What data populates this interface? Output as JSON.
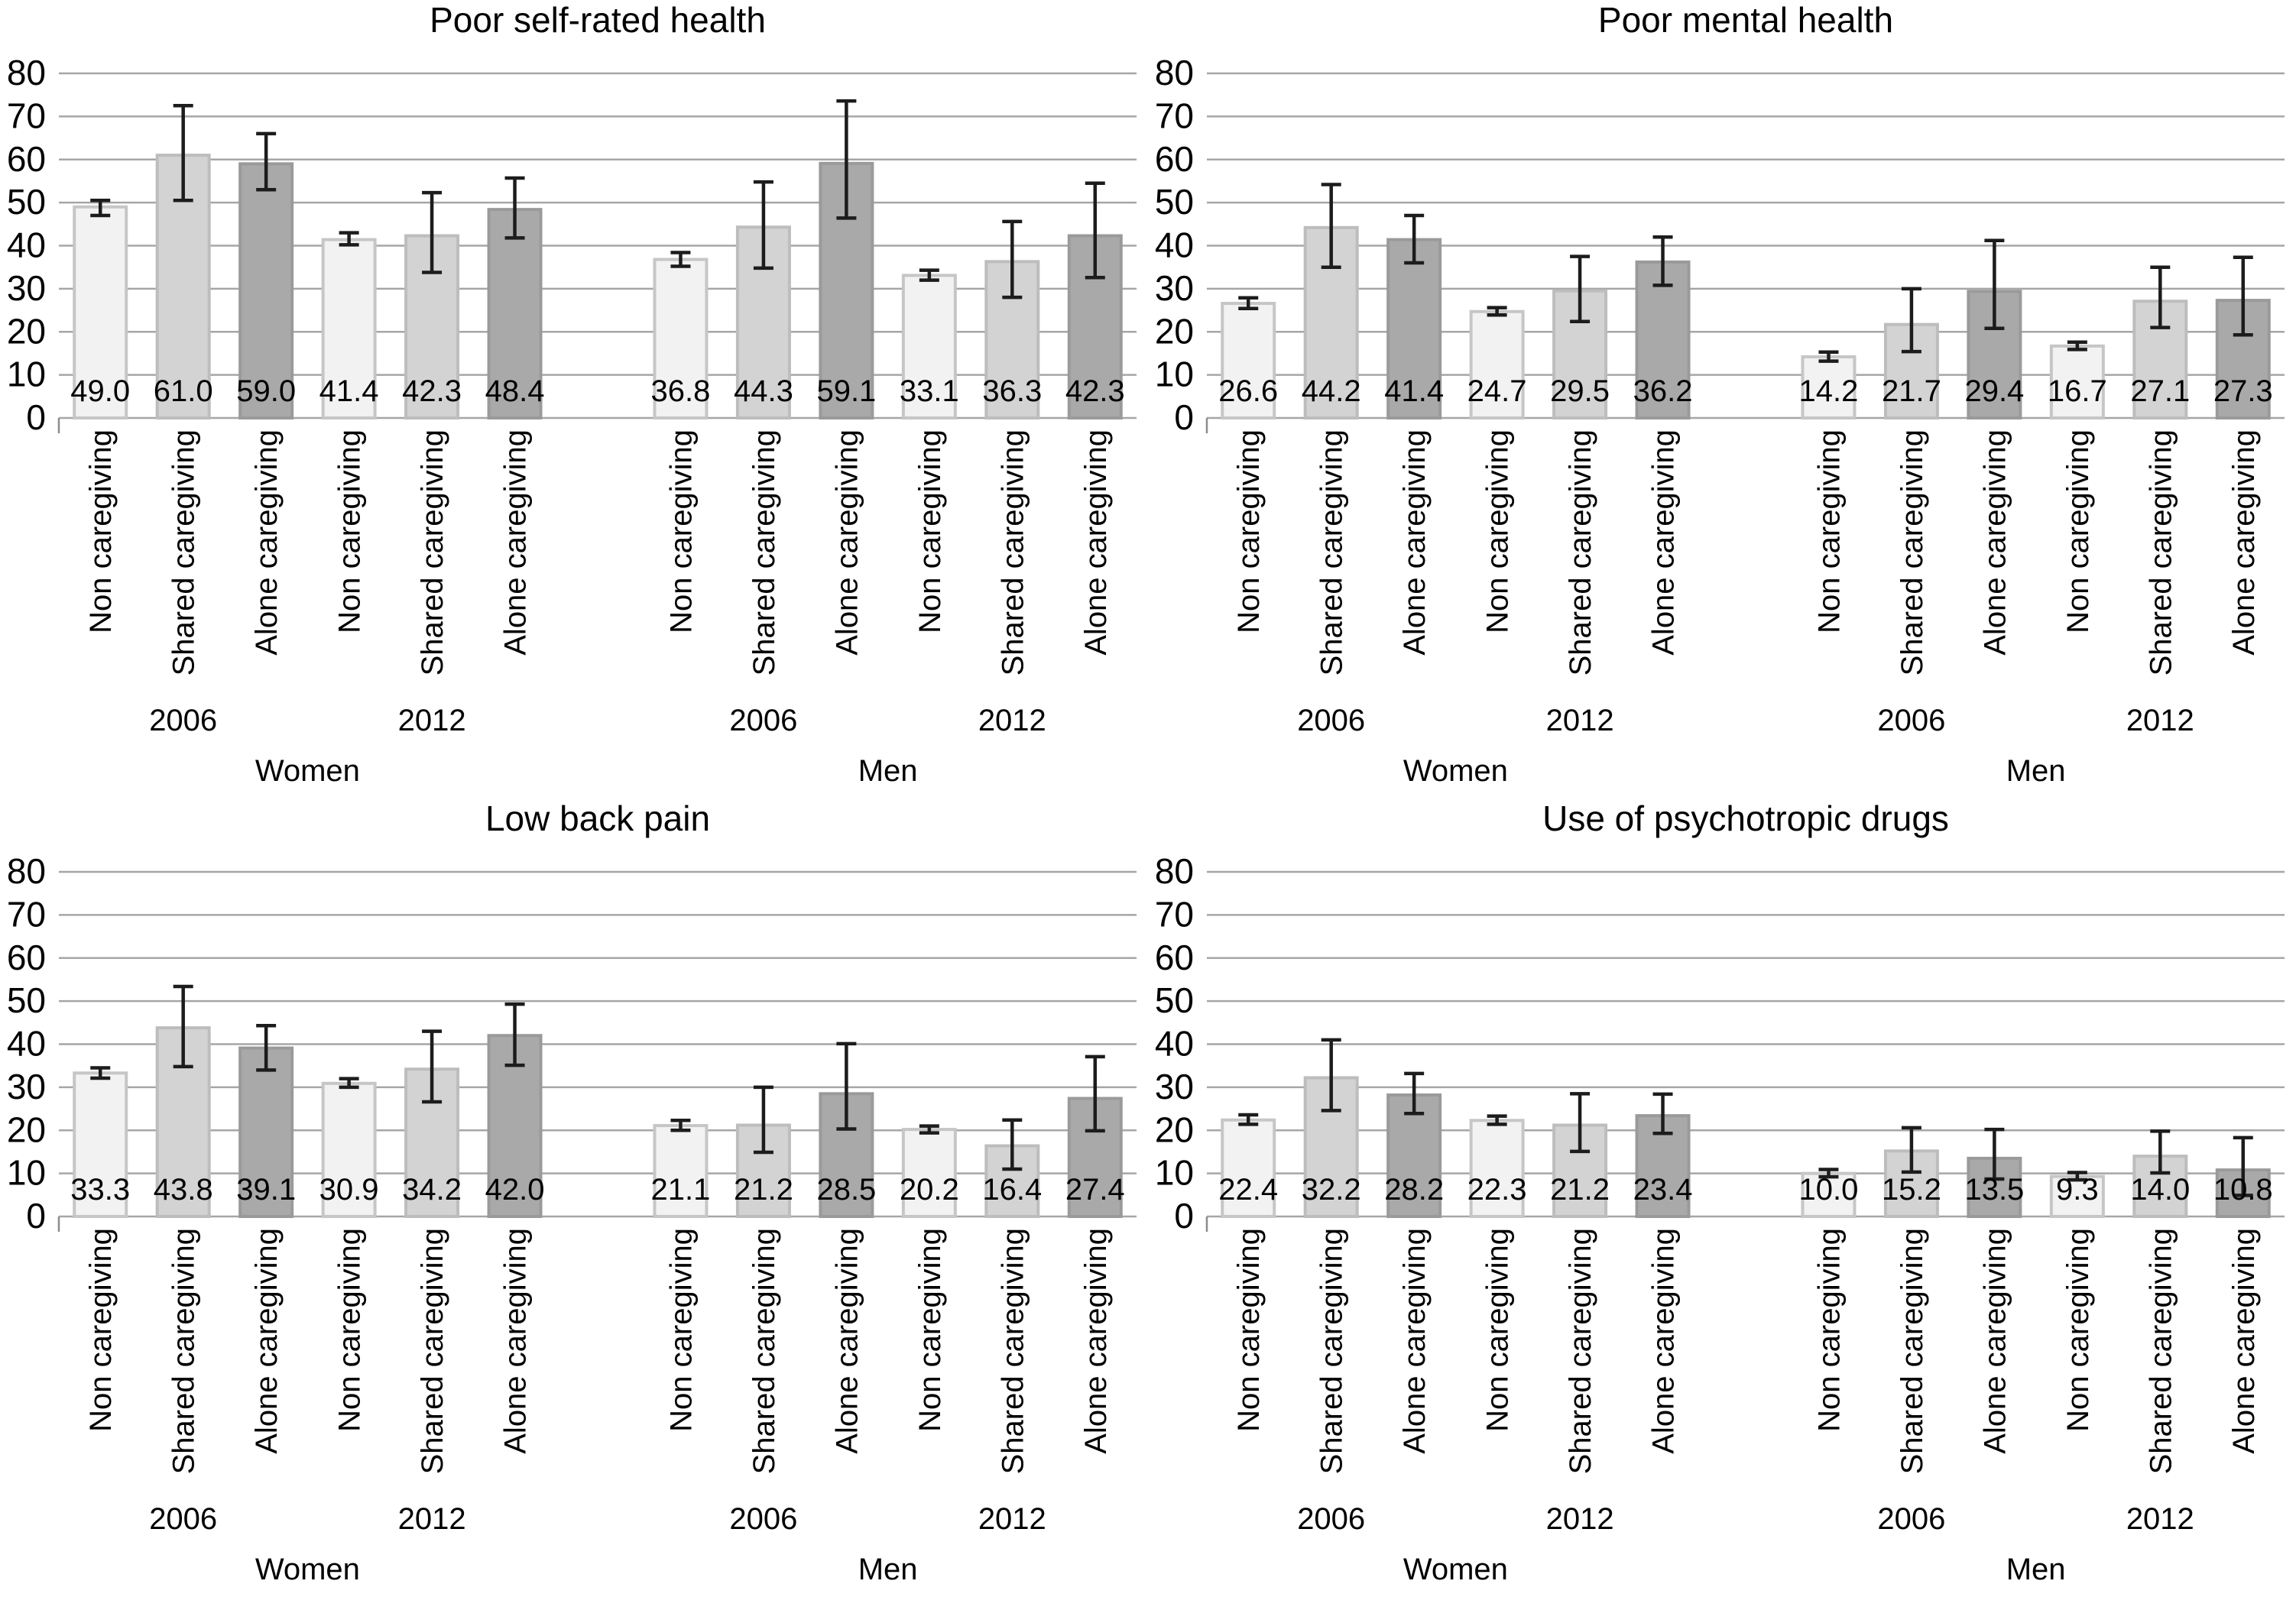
{
  "figure": {
    "description": "Four-panel grouped bar chart figure comparing health outcomes by caregiving status, sex and year",
    "panel_titles": [
      "Poor self-rated health",
      "Poor mental health",
      "Low back pain",
      "Use of psychotropic drugs"
    ]
  },
  "style": {
    "bar_fills": [
      "#f2f2f2",
      "#d3d3d3",
      "#a9a9a9"
    ],
    "bar_strokes": [
      "#c6c6c6",
      "#bdbdbd",
      "#9a9a9a"
    ],
    "gridline_color": "#a6a6a6",
    "error_bar_color": "#1c1c1c",
    "text_color": "#000000",
    "background": "#ffffff"
  },
  "chart_data": [
    {
      "type": "bar",
      "title": "Poor self-rated health",
      "ylim": [
        0,
        80
      ],
      "ytick_step": 10,
      "grid": true,
      "legend_position": "none",
      "bar_categories": [
        "Non caregiving",
        "Shared caregiving",
        "Alone caregiving"
      ],
      "groups": [
        {
          "gender": "Women",
          "year": "2006",
          "values": [
            49.0,
            61.0,
            59.0
          ],
          "ci_low": [
            47.0,
            50.5,
            53.0
          ],
          "ci_high": [
            50.5,
            72.5,
            66.0
          ]
        },
        {
          "gender": "Women",
          "year": "2012",
          "values": [
            41.4,
            42.3,
            48.4
          ],
          "ci_low": [
            40.2,
            33.8,
            41.8
          ],
          "ci_high": [
            43.0,
            52.3,
            55.7
          ]
        },
        {
          "gender": "Men",
          "year": "2006",
          "values": [
            36.8,
            44.3,
            59.1
          ],
          "ci_low": [
            35.2,
            34.8,
            46.4
          ],
          "ci_high": [
            38.4,
            54.8,
            73.6
          ]
        },
        {
          "gender": "Men",
          "year": "2012",
          "values": [
            33.1,
            36.3,
            42.3
          ],
          "ci_low": [
            32.0,
            28.0,
            32.6
          ],
          "ci_high": [
            34.3,
            45.6,
            54.5
          ]
        }
      ]
    },
    {
      "type": "bar",
      "title": "Poor mental health",
      "ylim": [
        0,
        80
      ],
      "ytick_step": 10,
      "grid": true,
      "legend_position": "none",
      "bar_categories": [
        "Non caregiving",
        "Shared caregiving",
        "Alone caregiving"
      ],
      "groups": [
        {
          "gender": "Women",
          "year": "2006",
          "values": [
            26.6,
            44.2,
            41.4
          ],
          "ci_low": [
            25.4,
            35.0,
            36.0
          ],
          "ci_high": [
            27.9,
            54.2,
            47.0
          ]
        },
        {
          "gender": "Women",
          "year": "2012",
          "values": [
            24.7,
            29.5,
            36.2
          ],
          "ci_low": [
            23.9,
            22.4,
            30.8
          ],
          "ci_high": [
            25.6,
            37.5,
            42.0
          ]
        },
        {
          "gender": "Men",
          "year": "2006",
          "values": [
            14.2,
            21.7,
            29.4
          ],
          "ci_low": [
            13.2,
            15.4,
            20.8
          ],
          "ci_high": [
            15.3,
            30.0,
            41.2
          ]
        },
        {
          "gender": "Men",
          "year": "2012",
          "values": [
            16.7,
            27.1,
            27.3
          ],
          "ci_low": [
            15.9,
            21.0,
            19.3
          ],
          "ci_high": [
            17.6,
            35.0,
            37.3
          ]
        }
      ]
    },
    {
      "type": "bar",
      "title": "Low back pain",
      "ylim": [
        0,
        80
      ],
      "ytick_step": 10,
      "grid": true,
      "legend_position": "none",
      "bar_categories": [
        "Non caregiving",
        "Shared caregiving",
        "Alone caregiving"
      ],
      "groups": [
        {
          "gender": "Women",
          "year": "2006",
          "values": [
            33.3,
            43.8,
            39.1
          ],
          "ci_low": [
            32.1,
            34.8,
            34.0
          ],
          "ci_high": [
            34.5,
            53.4,
            44.3
          ]
        },
        {
          "gender": "Women",
          "year": "2012",
          "values": [
            30.9,
            34.2,
            42.0
          ],
          "ci_low": [
            30.0,
            26.6,
            35.1
          ],
          "ci_high": [
            32.0,
            43.0,
            49.3
          ]
        },
        {
          "gender": "Men",
          "year": "2006",
          "values": [
            21.1,
            21.2,
            28.5
          ],
          "ci_low": [
            20.0,
            14.9,
            20.3
          ],
          "ci_high": [
            22.3,
            30.0,
            40.1
          ]
        },
        {
          "gender": "Men",
          "year": "2012",
          "values": [
            20.2,
            16.4,
            27.4
          ],
          "ci_low": [
            19.4,
            11.0,
            19.9
          ],
          "ci_high": [
            21.0,
            22.4,
            37.1
          ]
        }
      ]
    },
    {
      "type": "bar",
      "title": "Use of psychotropic drugs",
      "ylim": [
        0,
        80
      ],
      "ytick_step": 10,
      "grid": true,
      "legend_position": "none",
      "bar_categories": [
        "Non caregiving",
        "Shared caregiving",
        "Alone caregiving"
      ],
      "groups": [
        {
          "gender": "Women",
          "year": "2006",
          "values": [
            22.4,
            32.2,
            28.2
          ],
          "ci_low": [
            21.4,
            24.6,
            23.9
          ],
          "ci_high": [
            23.6,
            41.0,
            33.2
          ]
        },
        {
          "gender": "Women",
          "year": "2012",
          "values": [
            22.3,
            21.2,
            23.4
          ],
          "ci_low": [
            21.4,
            15.1,
            19.3
          ],
          "ci_high": [
            23.3,
            28.5,
            28.4
          ]
        },
        {
          "gender": "Men",
          "year": "2006",
          "values": [
            10.0,
            15.2,
            13.5
          ],
          "ci_low": [
            9.2,
            10.3,
            8.7
          ],
          "ci_high": [
            10.9,
            20.6,
            20.2
          ]
        },
        {
          "gender": "Men",
          "year": "2012",
          "values": [
            9.3,
            14.0,
            10.8
          ],
          "ci_low": [
            8.5,
            10.1,
            4.9
          ],
          "ci_high": [
            10.2,
            19.8,
            18.3
          ]
        }
      ]
    }
  ]
}
